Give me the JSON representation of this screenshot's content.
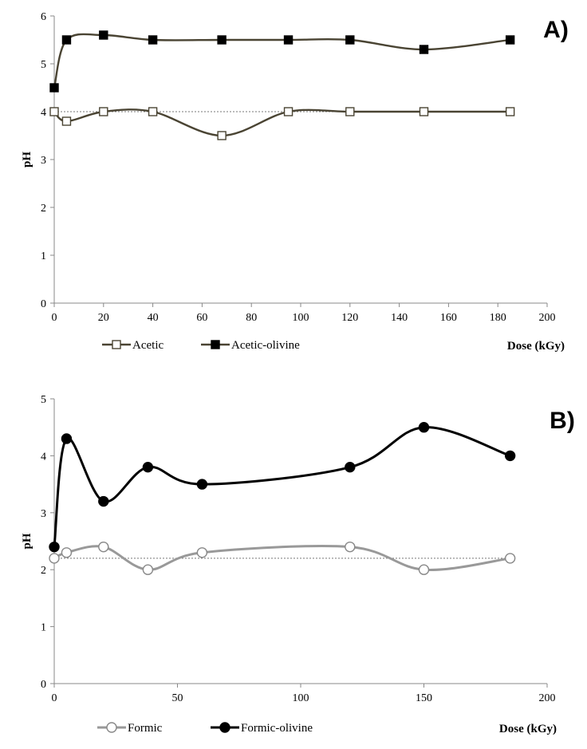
{
  "chart_data": [
    {
      "type": "line",
      "panel_label": "A)",
      "xlabel": "Dose (kGy)",
      "ylabel": "pH",
      "xlim": [
        0,
        200
      ],
      "ylim": [
        0,
        6
      ],
      "xticks": [
        0,
        20,
        40,
        60,
        80,
        100,
        120,
        140,
        160,
        180,
        200
      ],
      "yticks": [
        0,
        1,
        2,
        3,
        4,
        5,
        6
      ],
      "reference_line": 4,
      "series": [
        {
          "name": "Acetic",
          "marker": "square-open",
          "color": "#4a4433",
          "x": [
            0,
            5,
            20,
            40,
            68,
            95,
            120,
            150,
            185
          ],
          "y": [
            4.0,
            3.8,
            4.0,
            4.0,
            3.5,
            4.0,
            4.0,
            4.0,
            4.0
          ]
        },
        {
          "name": "Acetic-olivine",
          "marker": "square-filled",
          "color": "#4a4433",
          "x": [
            0,
            5,
            20,
            40,
            68,
            95,
            120,
            150,
            185
          ],
          "y": [
            4.5,
            5.5,
            5.6,
            5.5,
            5.5,
            5.5,
            5.5,
            5.3,
            5.5
          ]
        }
      ],
      "legend_position": "bottom-left"
    },
    {
      "type": "line",
      "panel_label": "B)",
      "xlabel": "Dose (kGy)",
      "ylabel": "pH",
      "xlim": [
        0,
        200
      ],
      "ylim": [
        0,
        5
      ],
      "xticks": [
        0,
        50,
        100,
        150,
        200
      ],
      "yticks": [
        0,
        1,
        2,
        3,
        4,
        5
      ],
      "reference_line": 2.2,
      "series": [
        {
          "name": "Formic",
          "marker": "circle-open",
          "color": "#999999",
          "x": [
            0,
            5,
            20,
            38,
            60,
            120,
            150,
            185
          ],
          "y": [
            2.2,
            2.3,
            2.4,
            2.0,
            2.3,
            2.4,
            2.0,
            2.2
          ]
        },
        {
          "name": "Formic-olivine",
          "marker": "circle-filled",
          "color": "#000000",
          "x": [
            0,
            5,
            20,
            38,
            60,
            120,
            150,
            185
          ],
          "y": [
            2.4,
            4.3,
            3.2,
            3.8,
            3.5,
            3.8,
            4.5,
            4.0
          ]
        }
      ],
      "legend_position": "bottom-left"
    }
  ]
}
